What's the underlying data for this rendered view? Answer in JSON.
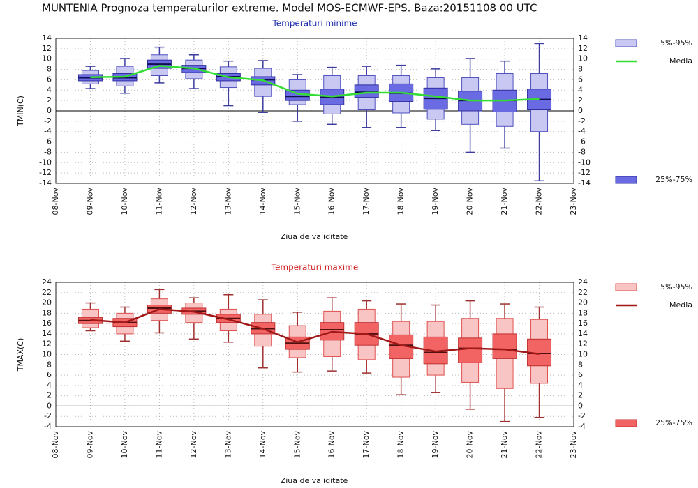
{
  "title": "MUNTENIA  Prognoza temperaturilor extreme.  Model MOS-ECMWF-EPS. Baza:20151108 00 UTC",
  "chart_data": [
    {
      "type": "box",
      "title": "Temperaturi minime",
      "title_color": "#2030b0",
      "ylabel": "TMIN(C)",
      "xlabel": "Ziua de validitate",
      "categories": [
        "08-Nov",
        "09-Nov",
        "10-Nov",
        "11-Nov",
        "12-Nov",
        "13-Nov",
        "14-Nov",
        "15-Nov",
        "16-Nov",
        "17-Nov",
        "18-Nov",
        "19-Nov",
        "20-Nov",
        "21-Nov",
        "22-Nov",
        "23-Nov"
      ],
      "ylim": [
        -14,
        14
      ],
      "yticks": [
        -14,
        -12,
        -10,
        -8,
        -6,
        -4,
        -2,
        0,
        2,
        4,
        6,
        8,
        10,
        12,
        14
      ],
      "grid": true,
      "whiskers": {
        "color": "#3c3ca0",
        "low": [
          null,
          4.3,
          3.4,
          5.4,
          4.3,
          1.0,
          -0.3,
          -2.0,
          -2.6,
          -3.2,
          -3.2,
          -3.8,
          -8.0,
          -7.2,
          -13.5,
          null
        ],
        "high": [
          null,
          8.6,
          10.1,
          12.3,
          10.8,
          9.6,
          9.7,
          7.0,
          8.4,
          8.6,
          8.8,
          8.1,
          10.1,
          9.6,
          13.0,
          null
        ]
      },
      "outer": {
        "name": "5%-95%",
        "color": "#c8c8f2",
        "edge": "#5050c0",
        "low": [
          null,
          5.2,
          4.8,
          6.8,
          6.2,
          4.5,
          2.8,
          1.2,
          -0.6,
          0.2,
          -0.4,
          -1.6,
          -2.6,
          -3.0,
          -4.0,
          null
        ],
        "high": [
          null,
          7.8,
          8.6,
          10.8,
          9.8,
          8.5,
          8.2,
          6.0,
          6.8,
          6.8,
          6.8,
          6.4,
          6.4,
          7.2,
          7.2,
          null
        ]
      },
      "inner": {
        "name": "25%-75%",
        "color": "#6a6ae2",
        "edge": "#3030a0",
        "low": [
          null,
          5.8,
          5.8,
          8.2,
          7.4,
          5.8,
          5.0,
          2.0,
          1.2,
          2.6,
          1.8,
          0.3,
          0.0,
          -0.2,
          0.2,
          null
        ],
        "high": [
          null,
          7.0,
          7.2,
          9.8,
          8.8,
          7.2,
          6.6,
          4.0,
          4.2,
          5.0,
          5.2,
          4.4,
          3.8,
          4.0,
          4.2,
          null
        ]
      },
      "median": {
        "color": "#101050",
        "values": [
          null,
          6.4,
          6.4,
          9.0,
          8.2,
          6.6,
          6.0,
          2.8,
          2.6,
          3.6,
          3.4,
          2.4,
          2.0,
          2.0,
          2.2,
          null
        ]
      },
      "mean": {
        "name": "Media",
        "color": "#33dd33",
        "values": [
          null,
          6.5,
          6.6,
          8.7,
          8.2,
          6.5,
          5.9,
          3.3,
          2.8,
          3.5,
          3.5,
          2.8,
          2.0,
          2.0,
          2.3,
          null
        ]
      }
    },
    {
      "type": "box",
      "title": "Temperaturi maxime",
      "title_color": "#d02020",
      "ylabel": "TMAX(C)",
      "xlabel": "Ziua de validitate",
      "categories": [
        "08-Nov",
        "09-Nov",
        "10-Nov",
        "11-Nov",
        "12-Nov",
        "13-Nov",
        "14-Nov",
        "15-Nov",
        "16-Nov",
        "17-Nov",
        "18-Nov",
        "19-Nov",
        "20-Nov",
        "21-Nov",
        "22-Nov",
        "23-Nov"
      ],
      "ylim": [
        -4,
        24
      ],
      "yticks": [
        -4,
        -2,
        0,
        2,
        4,
        6,
        8,
        10,
        12,
        14,
        16,
        18,
        20,
        22,
        24
      ],
      "grid": true,
      "whiskers": {
        "color": "#a03030",
        "low": [
          null,
          14.6,
          12.6,
          14.2,
          13.0,
          12.4,
          7.4,
          6.6,
          6.8,
          6.4,
          2.2,
          2.6,
          -0.6,
          -3.0,
          -2.2,
          null
        ],
        "high": [
          null,
          20.0,
          19.2,
          22.6,
          21.0,
          21.6,
          20.6,
          18.2,
          21.0,
          20.4,
          19.8,
          19.6,
          20.4,
          19.8,
          19.2,
          null
        ]
      },
      "outer": {
        "name": "5%-95%",
        "color": "#f8c4c4",
        "edge": "#e05050",
        "low": [
          null,
          15.2,
          14.0,
          16.6,
          16.2,
          14.6,
          11.6,
          9.4,
          9.6,
          9.0,
          5.6,
          6.0,
          4.6,
          3.4,
          4.4,
          null
        ],
        "high": [
          null,
          18.8,
          18.0,
          20.8,
          20.0,
          18.8,
          17.8,
          15.6,
          18.4,
          18.8,
          16.4,
          16.4,
          17.0,
          17.0,
          16.8,
          null
        ]
      },
      "inner": {
        "name": "25%-75%",
        "color": "#f26464",
        "edge": "#c03030",
        "low": [
          null,
          16.0,
          15.4,
          18.0,
          17.8,
          16.2,
          14.0,
          11.0,
          12.8,
          11.8,
          9.2,
          8.2,
          8.4,
          9.2,
          7.8,
          null
        ],
        "high": [
          null,
          17.2,
          17.0,
          19.6,
          19.0,
          17.8,
          16.2,
          13.4,
          16.2,
          16.2,
          13.8,
          13.4,
          13.2,
          14.0,
          13.0,
          null
        ]
      },
      "median": {
        "color": "#501010",
        "values": [
          null,
          16.6,
          16.2,
          19.0,
          18.4,
          17.0,
          15.0,
          12.2,
          14.8,
          14.0,
          11.8,
          10.4,
          11.2,
          11.0,
          10.2,
          null
        ]
      },
      "mean": {
        "name": "Media",
        "color": "#a01818",
        "values": [
          null,
          16.7,
          16.2,
          18.8,
          18.3,
          16.8,
          15.0,
          12.4,
          14.4,
          14.0,
          11.8,
          10.6,
          11.2,
          11.0,
          10.1,
          null
        ]
      }
    }
  ]
}
